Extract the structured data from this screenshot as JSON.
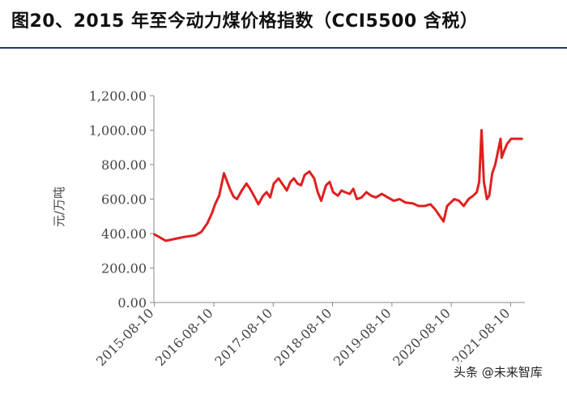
{
  "title": "图20、2015 年至今动力煤价格指数（CCI5500 含税）",
  "watermark": "头条 @未来智库",
  "chart_data": {
    "type": "line",
    "ylabel": "元/万吨",
    "ylim": [
      0,
      1200
    ],
    "yticks": [
      0,
      200,
      400,
      600,
      800,
      1000,
      1200
    ],
    "ytick_labels": [
      "0.00",
      "200.00",
      "400.00",
      "600.00",
      "800.00",
      "1,000.00",
      "1,200.00"
    ],
    "xticks": [
      "2015-08-10",
      "2016-08-10",
      "2017-08-10",
      "2018-08-10",
      "2019-08-10",
      "2020-08-10",
      "2021-08-10"
    ],
    "xlim": [
      2015.6,
      2021.85
    ],
    "color": "#e02020",
    "series": [
      {
        "x": [
          2015.61,
          2015.7,
          2015.8,
          2015.9,
          2016.0,
          2016.1,
          2016.2,
          2016.3,
          2016.4,
          2016.5,
          2016.58,
          2016.63,
          2016.7,
          2016.78,
          2016.88,
          2016.94,
          2017.0,
          2017.08,
          2017.16,
          2017.22,
          2017.3,
          2017.36,
          2017.44,
          2017.5,
          2017.56,
          2017.62,
          2017.7,
          2017.76,
          2017.84,
          2017.9,
          2017.96,
          2018.02,
          2018.08,
          2018.14,
          2018.22,
          2018.3,
          2018.36,
          2018.42,
          2018.5,
          2018.56,
          2018.62,
          2018.7,
          2018.76,
          2018.82,
          2018.9,
          2018.96,
          2019.02,
          2019.1,
          2019.18,
          2019.26,
          2019.34,
          2019.44,
          2019.54,
          2019.64,
          2019.74,
          2019.84,
          2019.96,
          2020.06,
          2020.16,
          2020.26,
          2020.34,
          2020.42,
          2020.48,
          2020.54,
          2020.6,
          2020.66,
          2020.74,
          2020.82,
          2020.9,
          2020.98,
          2021.04,
          2021.08,
          2021.12,
          2021.16,
          2021.21,
          2021.25,
          2021.3,
          2021.35,
          2021.41,
          2021.44,
          2021.46,
          2021.5,
          2021.55,
          2021.62,
          2021.7,
          2021.8
        ],
        "y": [
          395,
          378,
          358,
          365,
          372,
          380,
          385,
          390,
          410,
          460,
          520,
          570,
          620,
          750,
          660,
          615,
          600,
          650,
          690,
          660,
          610,
          570,
          620,
          640,
          610,
          690,
          720,
          690,
          650,
          700,
          720,
          690,
          680,
          740,
          760,
          720,
          640,
          590,
          680,
          700,
          640,
          620,
          650,
          640,
          630,
          660,
          600,
          610,
          640,
          620,
          610,
          630,
          610,
          590,
          600,
          580,
          575,
          560,
          560,
          570,
          540,
          500,
          470,
          560,
          580,
          600,
          590,
          560,
          600,
          620,
          640,
          700,
          1000,
          700,
          600,
          620,
          750,
          800,
          900,
          950,
          840,
          880,
          920,
          950,
          950,
          950
        ]
      }
    ]
  }
}
